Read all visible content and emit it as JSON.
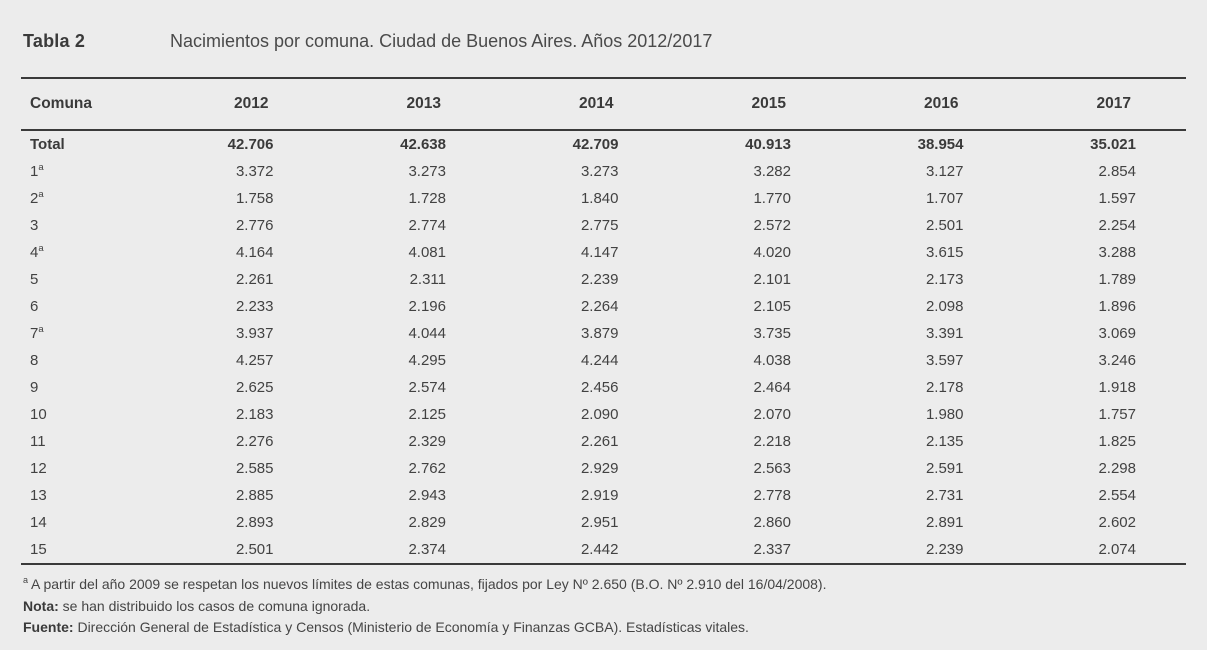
{
  "header": {
    "label": "Tabla 2",
    "title": "Nacimientos por comuna. Ciudad de Buenos Aires. Años 2012/2017"
  },
  "columns": [
    "Comuna",
    "2012",
    "2013",
    "2014",
    "2015",
    "2016",
    "2017"
  ],
  "rows": [
    {
      "comuna": "Total",
      "sup": false,
      "bold": true,
      "values": [
        "42.706",
        "42.638",
        "42.709",
        "40.913",
        "38.954",
        "35.021"
      ]
    },
    {
      "comuna": "1",
      "sup": true,
      "bold": false,
      "values": [
        "3.372",
        "3.273",
        "3.273",
        "3.282",
        "3.127",
        "2.854"
      ]
    },
    {
      "comuna": "2",
      "sup": true,
      "bold": false,
      "values": [
        "1.758",
        "1.728",
        "1.840",
        "1.770",
        "1.707",
        "1.597"
      ]
    },
    {
      "comuna": "3",
      "sup": false,
      "bold": false,
      "values": [
        "2.776",
        "2.774",
        "2.775",
        "2.572",
        "2.501",
        "2.254"
      ]
    },
    {
      "comuna": "4",
      "sup": true,
      "bold": false,
      "values": [
        "4.164",
        "4.081",
        "4.147",
        "4.020",
        "3.615",
        "3.288"
      ]
    },
    {
      "comuna": "5",
      "sup": false,
      "bold": false,
      "values": [
        "2.261",
        "2.311",
        "2.239",
        "2.101",
        "2.173",
        "1.789"
      ]
    },
    {
      "comuna": "6",
      "sup": false,
      "bold": false,
      "values": [
        "2.233",
        "2.196",
        "2.264",
        "2.105",
        "2.098",
        "1.896"
      ]
    },
    {
      "comuna": "7",
      "sup": true,
      "bold": false,
      "values": [
        "3.937",
        "4.044",
        "3.879",
        "3.735",
        "3.391",
        "3.069"
      ]
    },
    {
      "comuna": "8",
      "sup": false,
      "bold": false,
      "values": [
        "4.257",
        "4.295",
        "4.244",
        "4.038",
        "3.597",
        "3.246"
      ]
    },
    {
      "comuna": "9",
      "sup": false,
      "bold": false,
      "values": [
        "2.625",
        "2.574",
        "2.456",
        "2.464",
        "2.178",
        "1.918"
      ]
    },
    {
      "comuna": "10",
      "sup": false,
      "bold": false,
      "values": [
        "2.183",
        "2.125",
        "2.090",
        "2.070",
        "1.980",
        "1.757"
      ]
    },
    {
      "comuna": "11",
      "sup": false,
      "bold": false,
      "values": [
        "2.276",
        "2.329",
        "2.261",
        "2.218",
        "2.135",
        "1.825"
      ]
    },
    {
      "comuna": "12",
      "sup": false,
      "bold": false,
      "values": [
        "2.585",
        "2.762",
        "2.929",
        "2.563",
        "2.591",
        "2.298"
      ]
    },
    {
      "comuna": "13",
      "sup": false,
      "bold": false,
      "values": [
        "2.885",
        "2.943",
        "2.919",
        "2.778",
        "2.731",
        "2.554"
      ]
    },
    {
      "comuna": "14",
      "sup": false,
      "bold": false,
      "values": [
        "2.893",
        "2.829",
        "2.951",
        "2.860",
        "2.891",
        "2.602"
      ]
    },
    {
      "comuna": "15",
      "sup": false,
      "bold": false,
      "values": [
        "2.501",
        "2.374",
        "2.442",
        "2.337",
        "2.239",
        "2.074"
      ]
    }
  ],
  "footnotes": {
    "marker": "a",
    "limits": "A partir del año 2009 se respetan los nuevos límites de estas comunas, fijados por Ley Nº 2.650 (B.O. Nº 2.910 del 16/04/2008).",
    "nota_label": "Nota:",
    "nota": "se han distribuido los casos de comuna ignorada.",
    "fuente_label": "Fuente:",
    "fuente": "Dirección General de Estadística y Censos (Ministerio de Economía y Finanzas GCBA). Estadísticas vitales."
  },
  "colors": {
    "background": "#ececec",
    "text": "#3e3e3e",
    "rule": "#3a3a3a"
  }
}
